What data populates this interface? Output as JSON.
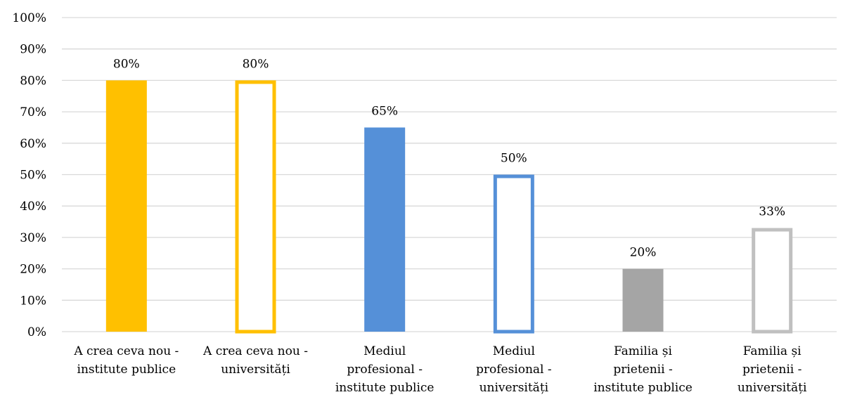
{
  "chart_data": {
    "type": "bar",
    "title": "",
    "xlabel": "",
    "ylabel": "",
    "ylim": [
      0,
      100
    ],
    "y_ticks": [
      "0%",
      "10%",
      "20%",
      "30%",
      "40%",
      "50%",
      "60%",
      "70%",
      "80%",
      "90%",
      "100%"
    ],
    "grid": true,
    "legend": "none",
    "categories": [
      [
        "A crea ceva nou -",
        "institute publice"
      ],
      [
        "A crea ceva nou -",
        "universități"
      ],
      [
        "Mediul",
        "profesional -",
        "institute publice"
      ],
      [
        "Mediul",
        "profesional -",
        "universități"
      ],
      [
        "Familia și",
        "prietenii -",
        "institute publice"
      ],
      [
        "Familia și",
        "prietenii -",
        "universități"
      ]
    ],
    "values": [
      80,
      80,
      65,
      50,
      20,
      33
    ],
    "data_labels": [
      "80%",
      "80%",
      "65%",
      "50%",
      "20%",
      "33%"
    ],
    "bar_styles": [
      {
        "fill": "#FFC000",
        "stroke": "#FFC000",
        "hollow": false
      },
      {
        "fill": "#FFFFFF",
        "stroke": "#FFC000",
        "hollow": true
      },
      {
        "fill": "#5590D8",
        "stroke": "#5590D8",
        "hollow": false
      },
      {
        "fill": "#FFFFFF",
        "stroke": "#5590D8",
        "hollow": true
      },
      {
        "fill": "#A5A5A5",
        "stroke": "#A5A5A5",
        "hollow": false
      },
      {
        "fill": "#FFFFFF",
        "stroke": "#C0C0C0",
        "hollow": true
      }
    ],
    "gridline_color": "#D9D9D9"
  }
}
